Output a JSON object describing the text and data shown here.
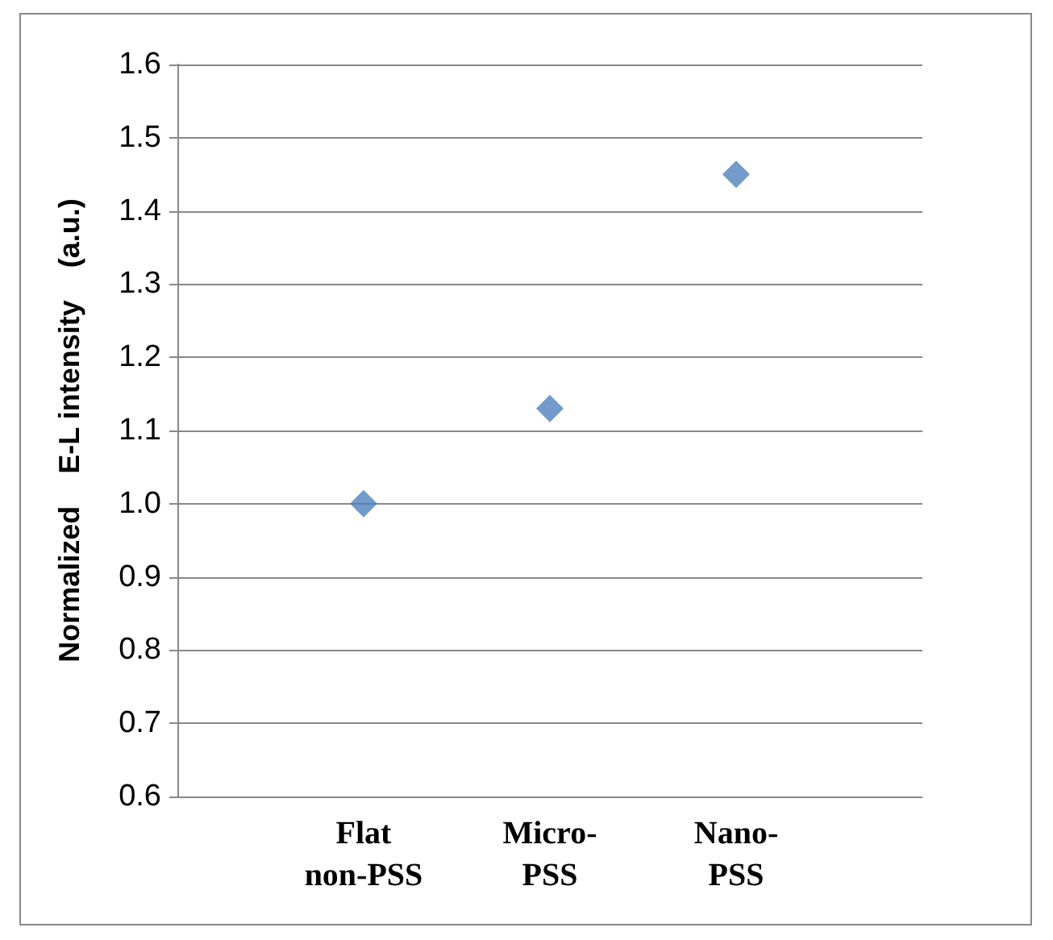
{
  "chart_data": {
    "type": "scatter",
    "ylabel": "Normalized    E-L intensity    (a.u.)",
    "categories": [
      "Flat\nnon-PSS",
      "Micro-\nPSS",
      "Nano-\nPSS"
    ],
    "series": [
      {
        "color": "#4f81bd",
        "values": [
          1.0,
          1.13,
          1.45
        ]
      }
    ],
    "ylim": [
      0.6,
      1.6
    ],
    "yticks": [
      {
        "value": 0.6,
        "label": "0.6"
      },
      {
        "value": 0.7,
        "label": "0.7"
      },
      {
        "value": 0.8,
        "label": "0.8"
      },
      {
        "value": 0.9,
        "label": "0.9"
      },
      {
        "value": 1,
        "label": "1.0"
      },
      {
        "value": 1.1,
        "label": "1.1"
      },
      {
        "value": 1.2,
        "label": "1.2"
      },
      {
        "value": 1.3,
        "label": "1.3"
      },
      {
        "value": 1.4,
        "label": "1.4"
      },
      {
        "value": 1.5,
        "label": "1.5"
      },
      {
        "value": 1.6,
        "label": "1.6"
      }
    ],
    "grid": "y",
    "marker": "diamond"
  }
}
